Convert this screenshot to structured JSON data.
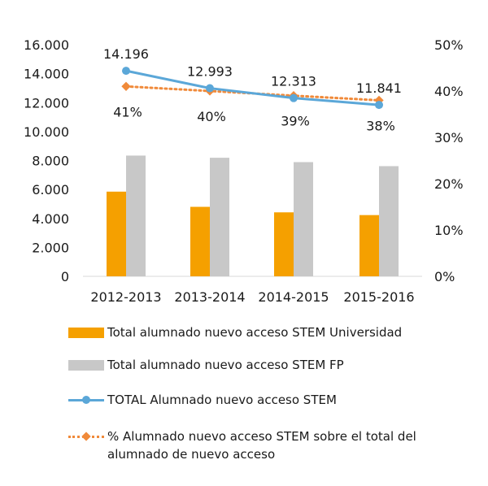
{
  "chart_data": {
    "type": "bar",
    "categories": [
      "2012-2013",
      "2013-2014",
      "2014-2015",
      "2015-2016"
    ],
    "y_left": {
      "ylim": [
        0,
        16000
      ],
      "ticks": [
        "0",
        "2.000",
        "4.000",
        "6.000",
        "8.000",
        "10.000",
        "12.000",
        "14.000",
        "16.000"
      ]
    },
    "y_right": {
      "ylim": [
        0,
        50
      ],
      "ticks": [
        "0%",
        "10%",
        "20%",
        "30%",
        "40%",
        "50%"
      ]
    },
    "series": [
      {
        "name": "Total alumnado nuevo acceso STEM Universidad",
        "kind": "bar",
        "axis": "left",
        "color": "#f5a000",
        "values": [
          5850,
          4800,
          4420,
          4230
        ]
      },
      {
        "name": "Total alumnado nuevo acceso STEM FP",
        "kind": "bar",
        "axis": "left",
        "color": "#c8c8c8",
        "values": [
          8340,
          8190,
          7890,
          7610
        ]
      },
      {
        "name": "TOTAL Alumnado nuevo acceso STEM",
        "kind": "line",
        "axis": "left",
        "color": "#5ba7d8",
        "values": [
          14196,
          12993,
          12313,
          11841
        ],
        "labels": [
          "14.196",
          "12.993",
          "12.313",
          "11.841"
        ]
      },
      {
        "name": "% Alumnado nuevo acceso STEM sobre el total del alumnado de nuevo acceso",
        "kind": "line-dotted",
        "axis": "right",
        "color": "#f08a3a",
        "values": [
          41,
          40,
          39,
          38
        ],
        "labels": [
          "41%",
          "40%",
          "39%",
          "38%"
        ]
      }
    ],
    "legend_placement": "bottom",
    "grid": false
  },
  "legend": {
    "items": [
      {
        "label": "Total alumnado nuevo acceso STEM Universidad"
      },
      {
        "label": "Total alumnado nuevo acceso STEM FP"
      },
      {
        "label": "TOTAL Alumnado nuevo acceso STEM"
      },
      {
        "label": "% Alumnado nuevo acceso STEM sobre el total del alumnado de nuevo acceso"
      }
    ]
  }
}
